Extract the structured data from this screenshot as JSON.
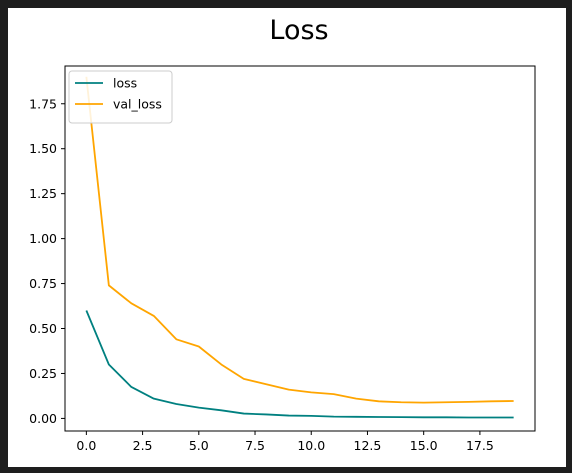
{
  "chart_data": {
    "type": "line",
    "title": "Loss",
    "xlabel": "",
    "ylabel": "",
    "xlim": [
      -0.95,
      19.95
    ],
    "ylim": [
      -0.07,
      1.96
    ],
    "xticks": [
      0.0,
      2.5,
      5.0,
      7.5,
      10.0,
      12.5,
      15.0,
      17.5
    ],
    "xtick_labels": [
      "0.0",
      "2.5",
      "5.0",
      "7.5",
      "10.0",
      "12.5",
      "15.0",
      "17.5"
    ],
    "yticks": [
      0.0,
      0.25,
      0.5,
      0.75,
      1.0,
      1.25,
      1.5,
      1.75
    ],
    "ytick_labels": [
      "0.00",
      "0.25",
      "0.50",
      "0.75",
      "1.00",
      "1.25",
      "1.50",
      "1.75"
    ],
    "grid": false,
    "legend_position": "top-left",
    "x": [
      0,
      1,
      2,
      3,
      4,
      5,
      6,
      7,
      8,
      9,
      10,
      11,
      12,
      13,
      14,
      15,
      16,
      17,
      18,
      19
    ],
    "series": [
      {
        "name": "loss",
        "color": "#008080",
        "values": [
          0.6,
          0.3,
          0.175,
          0.11,
          0.08,
          0.06,
          0.045,
          0.027,
          0.022,
          0.016,
          0.014,
          0.01,
          0.009,
          0.008,
          0.007,
          0.006,
          0.006,
          0.005,
          0.005,
          0.005
        ]
      },
      {
        "name": "val_loss",
        "color": "#FFA500",
        "values": [
          1.9,
          0.74,
          0.64,
          0.57,
          0.44,
          0.4,
          0.3,
          0.22,
          0.19,
          0.16,
          0.145,
          0.135,
          0.11,
          0.095,
          0.09,
          0.088,
          0.09,
          0.092,
          0.095,
          0.097
        ]
      }
    ]
  }
}
